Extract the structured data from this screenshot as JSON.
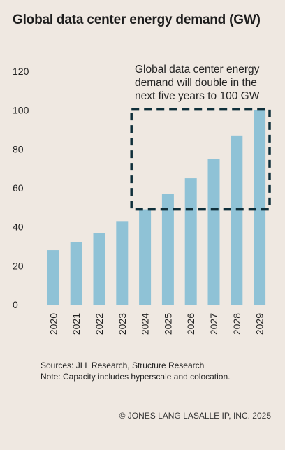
{
  "chart_data": {
    "type": "bar",
    "title": "Global data center energy demand (GW)",
    "categories": [
      "2020",
      "2021",
      "2022",
      "2023",
      "2024",
      "2025",
      "2026",
      "2027",
      "2028",
      "2029"
    ],
    "values": [
      28,
      32,
      37,
      43,
      49,
      57,
      65,
      75,
      87,
      100
    ],
    "ylim": [
      0,
      120
    ],
    "yticks": [
      "0",
      "20",
      "40",
      "60",
      "80",
      "100",
      "120"
    ],
    "grid": false,
    "bar_color": "#8fc2d6",
    "annotation": {
      "lines": [
        "Global data center energy",
        "demand will double in the",
        "next five years to 100 GW"
      ],
      "box_color": "#0f2f3a"
    }
  },
  "footer": {
    "sources": "Sources: JLL Research, Structure Research",
    "note": "Note: Capacity includes hyperscale and colocation.",
    "copyright": "© JONES LANG LASALLE IP, INC. 2025"
  }
}
